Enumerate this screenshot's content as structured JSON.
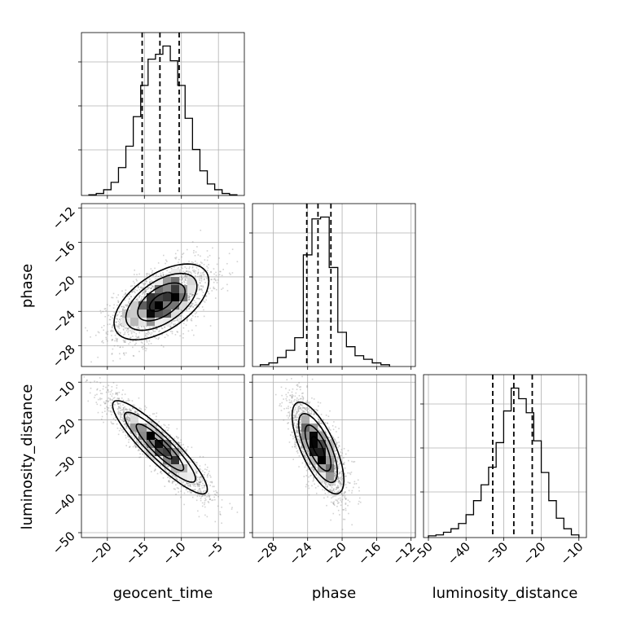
{
  "chart_data": {
    "type": "corner",
    "parameters": [
      "geocent_time",
      "phase",
      "luminosity_distance"
    ],
    "ranges": {
      "geocent_time": [
        -23.5,
        -1.5
      ],
      "phase": [
        -30.4,
        -11.5
      ],
      "luminosity_distance": [
        -51.3,
        -8.0
      ]
    },
    "ticks": {
      "geocent_time": [
        -20,
        -15,
        -10,
        -5
      ],
      "phase": [
        -28,
        -24,
        -20,
        -16,
        -12
      ],
      "luminosity_distance": [
        -50,
        -40,
        -30,
        -20,
        -10
      ]
    },
    "tick_labels": {
      "geocent_time": [
        "−20",
        "−15",
        "−10",
        "−5"
      ],
      "phase": [
        "−28",
        "−24",
        "−20",
        "−16",
        "−12"
      ],
      "luminosity_distance": [
        "−50",
        "−40",
        "−30",
        "−20",
        "−10"
      ]
    },
    "quantiles": {
      "geocent_time": [
        -15.3,
        -12.9,
        -10.3
      ],
      "phase": [
        -24.1,
        -22.8,
        -21.3
      ],
      "luminosity_distance": [
        -32.9,
        -27.3,
        -22.4
      ]
    },
    "histograms": {
      "geocent_time": {
        "bin_edges": [
          -22.5,
          -21.5,
          -20.5,
          -19.5,
          -18.5,
          -17.5,
          -16.5,
          -15.5,
          -14.5,
          -13.5,
          -12.5,
          -11.5,
          -10.5,
          -9.5,
          -8.5,
          -7.5,
          -6.5,
          -5.5,
          -4.5,
          -3.5,
          -2.5
        ],
        "counts": [
          0.4,
          1.2,
          3.5,
          8,
          17,
          30,
          48,
          67,
          83,
          86,
          91,
          82,
          67,
          47,
          28,
          15,
          7,
          3.5,
          1.2,
          0.4
        ]
      },
      "phase": {
        "bin_edges": [
          -29.5,
          -28.5,
          -27.5,
          -26.5,
          -25.5,
          -24.5,
          -23.5,
          -22.5,
          -21.5,
          -20.5,
          -19.5,
          -18.5,
          -17.5,
          -16.5,
          -15.5,
          -14.5
        ],
        "counts": [
          1,
          2,
          5,
          9,
          16,
          62,
          82,
          83,
          55,
          19,
          11,
          6,
          4,
          2,
          1
        ]
      },
      "luminosity_distance": {
        "bin_edges": [
          -50,
          -48,
          -46,
          -44,
          -42,
          -40,
          -38,
          -36,
          -34,
          -32,
          -30,
          -28,
          -26,
          -24,
          -22,
          -20,
          -18,
          -16,
          -14,
          -12,
          -10
        ],
        "counts": [
          1,
          1.5,
          3,
          5,
          8,
          13,
          21,
          30,
          40,
          54,
          72,
          85,
          79,
          71,
          55,
          37,
          21,
          11,
          5,
          1.5
        ]
      }
    },
    "pairs": [
      {
        "x": "geocent_time",
        "y": "phase",
        "center": [
          -12.7,
          -22.9
        ],
        "sigma": [
          3.2,
          2.2
        ],
        "corr": 0.55,
        "n": 2400
      },
      {
        "x": "geocent_time",
        "y": "luminosity_distance",
        "center": [
          -12.9,
          -27.3
        ],
        "sigma": [
          3.2,
          6.2
        ],
        "corr": -0.9,
        "n": 2600
      },
      {
        "x": "phase",
        "y": "luminosity_distance",
        "center": [
          -22.8,
          -27.5
        ],
        "sigma": [
          1.5,
          6.1
        ],
        "corr": -0.7,
        "n": 2400
      }
    ],
    "grid": true,
    "colors": {
      "hist": "#000000",
      "points": "#7f7f7f",
      "grid": "#b0b0b0"
    }
  }
}
